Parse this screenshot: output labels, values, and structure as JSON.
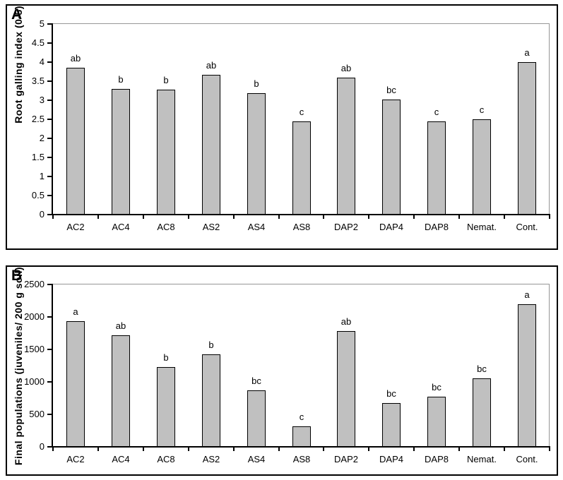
{
  "figure": {
    "background": "#ffffff",
    "panel_border_color": "#000000",
    "axis_color": "#000000",
    "plot_border_color": "#969696",
    "bar_fill": "#c0c0c0",
    "bar_border": "#000000"
  },
  "chart_data": [
    {
      "type": "bar",
      "panel_label": "A",
      "title": "",
      "xlabel": "",
      "ylabel": "Root galling index (0-5)",
      "categories": [
        "AC2",
        "AC4",
        "AC8",
        "AS2",
        "AS4",
        "AS8",
        "DAP2",
        "DAP4",
        "DAP8",
        "Nemat.",
        "Cont."
      ],
      "values": [
        3.84,
        3.27,
        3.25,
        3.64,
        3.17,
        2.42,
        3.57,
        3.0,
        2.42,
        2.48,
        3.98
      ],
      "bar_labels": [
        "ab",
        "b",
        "b",
        "ab",
        "b",
        "c",
        "ab",
        "bc",
        "c",
        "c",
        "a"
      ],
      "ylim": [
        0,
        5
      ],
      "yticks": [
        "0",
        "0.5",
        "1",
        "1.5",
        "2",
        "2.5",
        "3",
        "3.5",
        "4",
        "4.5",
        "5"
      ],
      "grid": false,
      "legend": "none"
    },
    {
      "type": "bar",
      "panel_label": "B",
      "title": "",
      "xlabel": "",
      "ylabel": "Final populations (juveniles/ 200 g soil)",
      "categories": [
        "AC2",
        "AC4",
        "AC8",
        "AS2",
        "AS4",
        "AS8",
        "DAP2",
        "DAP4",
        "DAP8",
        "Nemat.",
        "Cont."
      ],
      "values": [
        1920,
        1705,
        1215,
        1410,
        860,
        300,
        1770,
        660,
        760,
        1040,
        2190
      ],
      "bar_labels": [
        "a",
        "ab",
        "b",
        "b",
        "bc",
        "c",
        "ab",
        "bc",
        "bc",
        "bc",
        "a"
      ],
      "ylim": [
        0,
        2500
      ],
      "yticks": [
        "0",
        "500",
        "1000",
        "1500",
        "2000",
        "2500"
      ],
      "grid": false,
      "legend": "none"
    }
  ]
}
